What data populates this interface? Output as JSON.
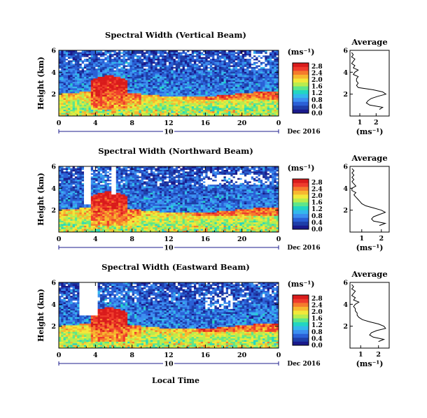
{
  "figure": {
    "xlabel": "Local Time",
    "date_label": "Dec 2016",
    "day_label": "10",
    "colorbar_unit": "(ms⁻¹)",
    "avg_title": "Average",
    "avg_xlabel": "(ms⁻¹)",
    "palette": [
      "#1a1a8c",
      "#1e3ea8",
      "#2a60d6",
      "#3c8ff0",
      "#33b8ec",
      "#22d6c2",
      "#5ee68a",
      "#b9ec4e",
      "#f2e83a",
      "#f7b72f",
      "#f57b2c",
      "#ef3b2c",
      "#d91b1b"
    ]
  },
  "chart_data": [
    {
      "type": "heatmap",
      "title": "Spectral Width (Vertical Beam)",
      "ylabel": "Height (km)",
      "xlabel": "",
      "x_ticks": [
        "0",
        "4",
        "8",
        "12",
        "16",
        "20",
        "0"
      ],
      "y_ticks": [
        "2",
        "4",
        "6"
      ],
      "xlim_hours": [
        0,
        24
      ],
      "ylim_km": [
        0,
        6
      ],
      "colorbar_ticks": [
        "0.0",
        "0.4",
        "0.8",
        "1.2",
        "1.6",
        "2.0",
        "2.4",
        "2.8"
      ],
      "colorbar_range": [
        0,
        3.0
      ],
      "avg_x_ticks": [
        "1",
        "2"
      ],
      "avg_y_ticks": [
        "2",
        "4",
        "6"
      ],
      "avg_xlim": [
        0.4,
        2.8
      ],
      "average_profile": {
        "height_km": [
          0.6,
          0.8,
          1.0,
          1.2,
          1.4,
          1.6,
          1.8,
          2.0,
          2.2,
          2.4,
          2.6,
          2.8,
          3.0,
          3.2,
          3.4,
          3.6,
          3.8,
          4.0,
          4.2,
          4.4,
          4.6,
          4.8,
          5.0,
          5.2,
          5.4,
          5.6,
          5.8
        ],
        "width": [
          2.2,
          2.4,
          1.6,
          1.4,
          1.5,
          1.7,
          2.1,
          2.6,
          2.4,
          1.8,
          0.9,
          0.8,
          0.9,
          0.8,
          0.8,
          0.9,
          0.6,
          0.7,
          0.9,
          0.6,
          0.7,
          0.5,
          0.6,
          0.7,
          0.5,
          0.6,
          0.5
        ]
      }
    },
    {
      "type": "heatmap",
      "title": "Spectral Width (Northward Beam)",
      "ylabel": "Height (km)",
      "xlabel": "",
      "x_ticks": [
        "0",
        "4",
        "8",
        "12",
        "16",
        "20",
        "0"
      ],
      "y_ticks": [
        "2",
        "4",
        "6"
      ],
      "xlim_hours": [
        0,
        24
      ],
      "ylim_km": [
        0,
        6
      ],
      "colorbar_ticks": [
        "0.0",
        "0.4",
        "0.8",
        "1.2",
        "1.6",
        "2.0",
        "2.4",
        "2.8"
      ],
      "colorbar_range": [
        0,
        3.0
      ],
      "avg_x_ticks": [
        "1",
        "2"
      ],
      "avg_y_ticks": [
        "2",
        "4",
        "6"
      ],
      "avg_xlim": [
        0.4,
        2.4
      ],
      "average_profile": {
        "height_km": [
          0.6,
          0.8,
          1.0,
          1.2,
          1.4,
          1.6,
          1.8,
          2.0,
          2.2,
          2.4,
          2.6,
          2.8,
          3.0,
          3.2,
          3.4,
          3.6,
          3.8,
          4.0,
          4.2,
          4.4,
          4.6,
          4.8,
          5.0,
          5.2,
          5.4,
          5.6,
          5.8
        ],
        "width": [
          1.9,
          2.2,
          1.6,
          1.5,
          1.6,
          1.9,
          2.2,
          2.0,
          1.6,
          1.2,
          1.0,
          0.9,
          0.8,
          0.7,
          0.6,
          0.7,
          0.5,
          0.5,
          0.7,
          0.6,
          0.5,
          0.6,
          0.5,
          0.6,
          0.5,
          0.6,
          0.5
        ]
      }
    },
    {
      "type": "heatmap",
      "title": "Spectral Width (Eastward Beam)",
      "ylabel": "Height (km)",
      "xlabel": "Local Time",
      "x_ticks": [
        "0",
        "4",
        "8",
        "12",
        "16",
        "20",
        "0"
      ],
      "y_ticks": [
        "2",
        "4",
        "6"
      ],
      "xlim_hours": [
        0,
        24
      ],
      "ylim_km": [
        0,
        6
      ],
      "colorbar_ticks": [
        "0.0",
        "0.4",
        "0.8",
        "1.2",
        "1.6",
        "2.0",
        "2.4",
        "2.8"
      ],
      "colorbar_range": [
        0,
        3.0
      ],
      "avg_x_ticks": [
        "1",
        "2"
      ],
      "avg_y_ticks": [
        "2",
        "4",
        "6"
      ],
      "avg_xlim": [
        0.4,
        2.6
      ],
      "average_profile": {
        "height_km": [
          0.6,
          0.8,
          1.0,
          1.2,
          1.4,
          1.6,
          1.8,
          2.0,
          2.2,
          2.4,
          2.6,
          2.8,
          3.0,
          3.2,
          3.4,
          3.6,
          3.8,
          4.0,
          4.2,
          4.4,
          4.6,
          4.8,
          5.0,
          5.2,
          5.4,
          5.6,
          5.8
        ],
        "width": [
          2.0,
          2.3,
          1.7,
          1.5,
          1.6,
          1.9,
          2.4,
          2.3,
          2.0,
          1.5,
          1.1,
          0.9,
          0.8,
          0.8,
          0.7,
          0.7,
          0.6,
          0.7,
          0.9,
          0.6,
          0.7,
          0.5,
          0.6,
          0.7,
          0.5,
          0.6,
          0.5
        ]
      }
    }
  ]
}
